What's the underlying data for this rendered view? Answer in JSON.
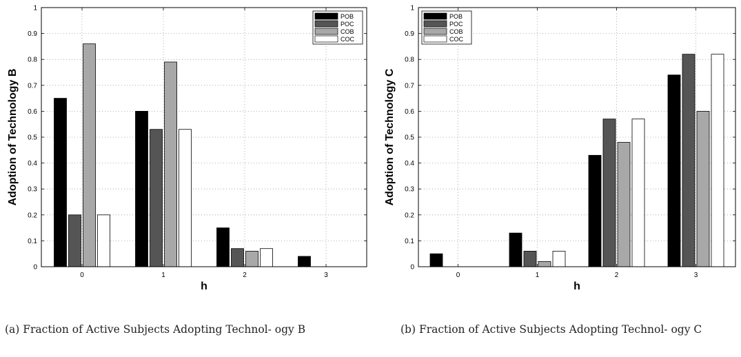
{
  "chart_data": [
    {
      "type": "bar",
      "title": "",
      "xlabel": "h",
      "ylabel": "Adoption of Technology B",
      "categories": [
        "0",
        "1",
        "2",
        "3"
      ],
      "ylim": [
        0,
        1
      ],
      "yticks": [
        "0",
        "0.1",
        "0.2",
        "0.3",
        "0.4",
        "0.5",
        "0.6",
        "0.7",
        "0.8",
        "0.9",
        "1"
      ],
      "grid": true,
      "legend_position": "top-right",
      "series": [
        {
          "name": "POB",
          "color": "#000000",
          "values": [
            0.65,
            0.6,
            0.15,
            0.04
          ]
        },
        {
          "name": "POC",
          "color": "#555555",
          "values": [
            0.2,
            0.53,
            0.07,
            0.0
          ]
        },
        {
          "name": "COB",
          "color": "#a8a8a8",
          "values": [
            0.86,
            0.79,
            0.06,
            0.0
          ]
        },
        {
          "name": "COC",
          "color": "#ffffff",
          "values": [
            0.2,
            0.53,
            0.07,
            0.0
          ]
        }
      ],
      "caption": "(a) Fraction of Active Subjects Adopting Technol- ogy B"
    },
    {
      "type": "bar",
      "title": "",
      "xlabel": "h",
      "ylabel": "Adoption of Technology C",
      "categories": [
        "0",
        "1",
        "2",
        "3"
      ],
      "ylim": [
        0,
        1
      ],
      "yticks": [
        "0",
        "0.1",
        "0.2",
        "0.3",
        "0.4",
        "0.5",
        "0.6",
        "0.7",
        "0.8",
        "0.9",
        "1"
      ],
      "grid": true,
      "legend_position": "top-left",
      "series": [
        {
          "name": "POB",
          "color": "#000000",
          "values": [
            0.05,
            0.13,
            0.43,
            0.74
          ]
        },
        {
          "name": "POC",
          "color": "#555555",
          "values": [
            0.0,
            0.06,
            0.57,
            0.82
          ]
        },
        {
          "name": "COB",
          "color": "#a8a8a8",
          "values": [
            0.0,
            0.02,
            0.48,
            0.6
          ]
        },
        {
          "name": "COC",
          "color": "#ffffff",
          "values": [
            0.0,
            0.06,
            0.57,
            0.82
          ]
        }
      ],
      "caption": "(b) Fraction of Active Subjects Adopting Technol- ogy C"
    }
  ]
}
